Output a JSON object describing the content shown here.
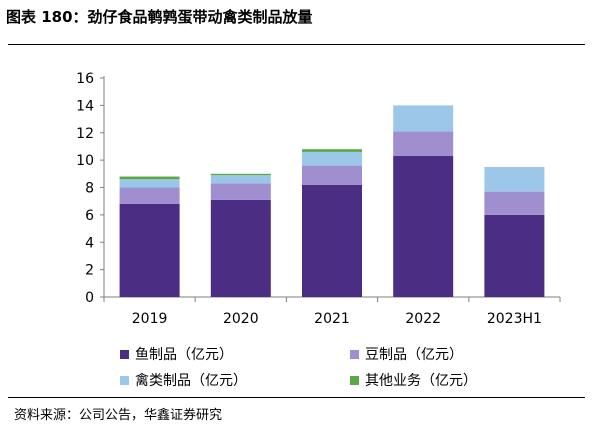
{
  "title": "图表 180：劲仔食品鹌鹑蛋带动禽类制品放量",
  "source": "资料来源：公司公告，华鑫证券研究",
  "chart_data": {
    "type": "bar",
    "stacked": true,
    "categories": [
      "2019",
      "2020",
      "2021",
      "2022",
      "2023H1"
    ],
    "ylim": [
      0,
      16
    ],
    "yticks": [
      0,
      2,
      4,
      6,
      8,
      10,
      12,
      14,
      16
    ],
    "grid": false,
    "legend_position": "bottom",
    "series": [
      {
        "name": "鱼制品（亿元）",
        "color": "#4b2e83",
        "values": [
          6.8,
          7.1,
          8.2,
          10.3,
          6.0
        ]
      },
      {
        "name": "豆制品（亿元）",
        "color": "#a08fcf",
        "values": [
          1.2,
          1.2,
          1.4,
          1.8,
          1.7
        ]
      },
      {
        "name": "禽类制品（亿元）",
        "color": "#9dc7e8",
        "values": [
          0.6,
          0.6,
          1.0,
          1.9,
          1.8
        ]
      },
      {
        "name": "其他业务（亿元）",
        "color": "#5aa946",
        "values": [
          0.2,
          0.1,
          0.2,
          0.0,
          0.0
        ]
      }
    ]
  }
}
